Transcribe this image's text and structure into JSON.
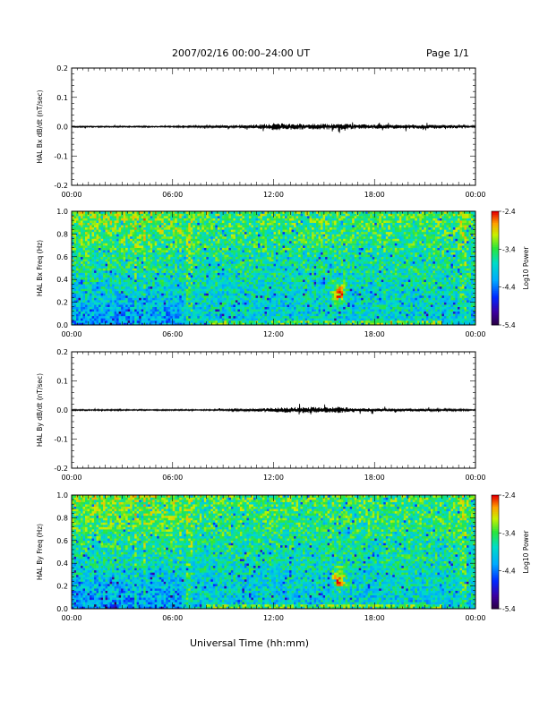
{
  "header": {
    "title": "2007/02/16  00:00–24:00 UT",
    "page": "Page 1/1"
  },
  "xlabel": "Universal Time (hh:mm)",
  "chart_data": [
    {
      "type": "line",
      "ylabel": "HAL Bx dB/dt (nT/sec)",
      "xlim": [
        0,
        24
      ],
      "ylim": [
        -0.2,
        0.2
      ],
      "xticks": [
        "00:00",
        "06:00",
        "12:00",
        "18:00",
        "00:00"
      ],
      "yticks": [
        "-0.2",
        "-0.1",
        "0.0",
        "0.1",
        "0.2"
      ],
      "envelope_x": [
        0,
        2,
        4,
        6,
        8,
        10,
        11,
        12,
        13,
        14,
        15,
        16,
        17,
        18,
        19,
        20,
        21,
        22,
        23,
        24
      ],
      "envelope_amp": [
        0.002,
        0.002,
        0.002,
        0.002,
        0.003,
        0.004,
        0.006,
        0.01,
        0.009,
        0.008,
        0.008,
        0.009,
        0.007,
        0.006,
        0.006,
        0.006,
        0.006,
        0.005,
        0.004,
        0.003
      ]
    },
    {
      "type": "heatmap",
      "ylabel": "HAL Bx Freq (Hz)",
      "xlim": [
        0,
        24
      ],
      "ylim": [
        0,
        1.0
      ],
      "xticks": [
        "00:00",
        "06:00",
        "12:00",
        "18:00",
        "00:00"
      ],
      "yticks": [
        "0.0",
        "0.2",
        "0.4",
        "0.6",
        "0.8",
        "1.0"
      ],
      "colorbar": {
        "label": "Log10 Power",
        "range": [
          -5.4,
          -2.4
        ],
        "ticks": [
          "-2.4",
          "-3.4",
          "-4.4",
          "-5.4"
        ]
      },
      "features": [
        {
          "t": 15.9,
          "f": 0.28,
          "level": "high"
        },
        {
          "t": 12.0,
          "f": 0.02,
          "level": "elevated"
        }
      ]
    },
    {
      "type": "line",
      "ylabel": "HAL By dB/dt (nT/sec)",
      "xlim": [
        0,
        24
      ],
      "ylim": [
        -0.2,
        0.2
      ],
      "xticks": [
        "00:00",
        "06:00",
        "12:00",
        "18:00",
        "00:00"
      ],
      "yticks": [
        "-0.2",
        "-0.1",
        "0.0",
        "0.1",
        "0.2"
      ],
      "envelope_x": [
        0,
        2,
        4,
        6,
        8,
        10,
        11,
        12,
        13,
        14,
        15,
        16,
        17,
        18,
        19,
        20,
        21,
        22,
        23,
        24
      ],
      "envelope_amp": [
        0.002,
        0.002,
        0.002,
        0.002,
        0.002,
        0.003,
        0.004,
        0.007,
        0.008,
        0.008,
        0.008,
        0.009,
        0.006,
        0.005,
        0.004,
        0.004,
        0.004,
        0.003,
        0.003,
        0.002
      ]
    },
    {
      "type": "heatmap",
      "ylabel": "HAL By Freq (Hz)",
      "xlim": [
        0,
        24
      ],
      "ylim": [
        0,
        1.0
      ],
      "xticks": [
        "00:00",
        "06:00",
        "12:00",
        "18:00",
        "00:00"
      ],
      "yticks": [
        "0.0",
        "0.2",
        "0.4",
        "0.6",
        "0.8",
        "1.0"
      ],
      "colorbar": {
        "label": "Log10 Power",
        "range": [
          -5.4,
          -2.4
        ],
        "ticks": [
          "-2.4",
          "-3.4",
          "-4.4",
          "-5.4"
        ]
      },
      "features": [
        {
          "t": 15.9,
          "f": 0.26,
          "level": "high"
        },
        {
          "t": 12.0,
          "f": 0.02,
          "level": "elevated"
        }
      ]
    }
  ]
}
